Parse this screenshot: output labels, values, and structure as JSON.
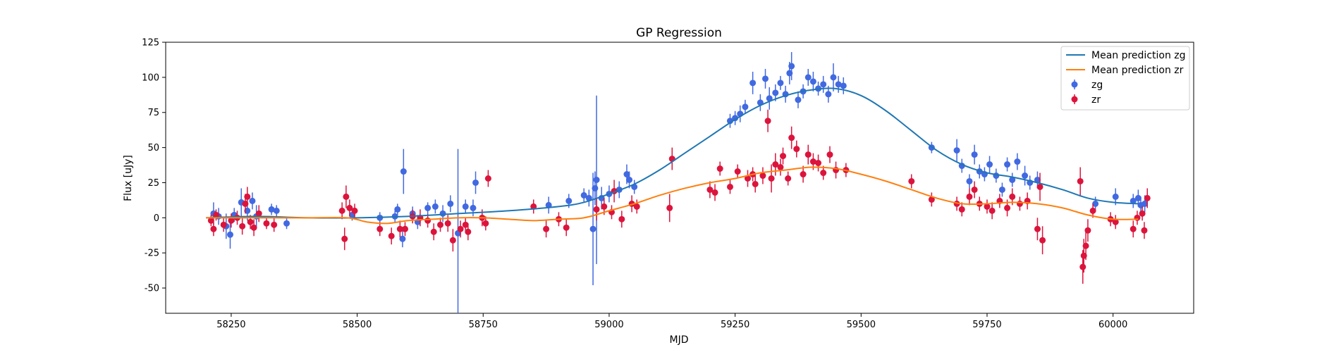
{
  "chart_data": {
    "type": "scatter",
    "title": "GP Regression",
    "xlabel": "MJD",
    "ylabel": "Flux [uJy]",
    "xlim": [
      58120,
      60160
    ],
    "ylim": [
      -68,
      125
    ],
    "xticks": [
      58250,
      58500,
      58750,
      59000,
      59250,
      59500,
      59750,
      60000
    ],
    "yticks": [
      -50,
      -25,
      0,
      25,
      50,
      75,
      100,
      125
    ],
    "grid": false,
    "legend_position": "top-right",
    "legend": [
      "Mean prediction zg",
      "Mean prediction zr",
      "zg",
      "zr"
    ],
    "colors": {
      "zg_line": "#1f77b4",
      "zr_line": "#ff7f0e",
      "zg_points": "#4169e1",
      "zr_points": "#dc143c"
    },
    "lines": [
      {
        "name": "Mean prediction zg",
        "color": "#1f77b4",
        "points": [
          [
            58200,
            0
          ],
          [
            58300,
            1
          ],
          [
            58400,
            0
          ],
          [
            58500,
            0
          ],
          [
            58600,
            1
          ],
          [
            58700,
            3
          ],
          [
            58800,
            5
          ],
          [
            58900,
            8
          ],
          [
            58950,
            11
          ],
          [
            59000,
            17
          ],
          [
            59050,
            24
          ],
          [
            59100,
            34
          ],
          [
            59150,
            46
          ],
          [
            59200,
            58
          ],
          [
            59250,
            70
          ],
          [
            59300,
            80
          ],
          [
            59350,
            87
          ],
          [
            59400,
            91
          ],
          [
            59450,
            92
          ],
          [
            59500,
            87
          ],
          [
            59550,
            76
          ],
          [
            59600,
            62
          ],
          [
            59650,
            48
          ],
          [
            59700,
            38
          ],
          [
            59750,
            32
          ],
          [
            59800,
            29
          ],
          [
            59850,
            25
          ],
          [
            59900,
            20
          ],
          [
            59950,
            14
          ],
          [
            60000,
            11
          ],
          [
            60050,
            10
          ]
        ]
      },
      {
        "name": "Mean prediction zr",
        "color": "#ff7f0e",
        "points": [
          [
            58200,
            0
          ],
          [
            58300,
            0
          ],
          [
            58400,
            0
          ],
          [
            58480,
            0
          ],
          [
            58520,
            -3
          ],
          [
            58560,
            -4
          ],
          [
            58600,
            -2
          ],
          [
            58650,
            -1
          ],
          [
            58700,
            0
          ],
          [
            58750,
            0
          ],
          [
            58800,
            -1
          ],
          [
            58850,
            -2
          ],
          [
            58900,
            -1
          ],
          [
            58950,
            0
          ],
          [
            59000,
            5
          ],
          [
            59050,
            10
          ],
          [
            59100,
            16
          ],
          [
            59150,
            21
          ],
          [
            59200,
            25
          ],
          [
            59250,
            28
          ],
          [
            59300,
            32
          ],
          [
            59350,
            34
          ],
          [
            59400,
            36
          ],
          [
            59450,
            35
          ],
          [
            59500,
            31
          ],
          [
            59550,
            26
          ],
          [
            59600,
            20
          ],
          [
            59650,
            14
          ],
          [
            59700,
            10
          ],
          [
            59750,
            10
          ],
          [
            59800,
            11
          ],
          [
            59850,
            10
          ],
          [
            59900,
            7
          ],
          [
            59950,
            2
          ],
          [
            60000,
            -1
          ],
          [
            60050,
            -1
          ]
        ]
      }
    ],
    "series": [
      {
        "name": "zg",
        "color": "#4169e1",
        "points": [
          [
            58215,
            3,
            8
          ],
          [
            58225,
            1,
            6
          ],
          [
            58240,
            -6,
            9
          ],
          [
            58248,
            -12,
            10
          ],
          [
            58256,
            2,
            5
          ],
          [
            58270,
            11,
            10
          ],
          [
            58282,
            5,
            7
          ],
          [
            58292,
            12,
            6
          ],
          [
            58300,
            1,
            8
          ],
          [
            58330,
            6,
            4
          ],
          [
            58340,
            5,
            4
          ],
          [
            58360,
            -4,
            4
          ],
          [
            58490,
            2,
            4
          ],
          [
            58545,
            0,
            4
          ],
          [
            58575,
            1,
            4
          ],
          [
            58580,
            6,
            4
          ],
          [
            58590,
            -15,
            6
          ],
          [
            58592,
            33,
            16
          ],
          [
            58610,
            3,
            5
          ],
          [
            58620,
            -3,
            5
          ],
          [
            58640,
            7,
            4
          ],
          [
            58655,
            8,
            5
          ],
          [
            58670,
            3,
            6
          ],
          [
            58685,
            10,
            6
          ],
          [
            58700,
            -11,
            60
          ],
          [
            58715,
            8,
            5
          ],
          [
            58730,
            7,
            6
          ],
          [
            58735,
            25,
            8
          ],
          [
            58880,
            9,
            6
          ],
          [
            58920,
            12,
            5
          ],
          [
            58950,
            16,
            5
          ],
          [
            58960,
            14,
            6
          ],
          [
            58968,
            -8,
            40
          ],
          [
            58972,
            21,
            12
          ],
          [
            58975,
            27,
            60
          ],
          [
            58985,
            14,
            8
          ],
          [
            59000,
            17,
            6
          ],
          [
            59020,
            20,
            6
          ],
          [
            59035,
            31,
            7
          ],
          [
            59040,
            27,
            6
          ],
          [
            59050,
            22,
            5
          ],
          [
            59240,
            69,
            5
          ],
          [
            59250,
            71,
            5
          ],
          [
            59260,
            74,
            6
          ],
          [
            59270,
            79,
            5
          ],
          [
            59285,
            96,
            8
          ],
          [
            59300,
            82,
            6
          ],
          [
            59310,
            99,
            7
          ],
          [
            59318,
            85,
            8
          ],
          [
            59330,
            89,
            6
          ],
          [
            59340,
            96,
            5
          ],
          [
            59350,
            88,
            6
          ],
          [
            59358,
            103,
            8
          ],
          [
            59362,
            108,
            10
          ],
          [
            59375,
            84,
            6
          ],
          [
            59385,
            90,
            5
          ],
          [
            59395,
            100,
            6
          ],
          [
            59405,
            97,
            7
          ],
          [
            59415,
            92,
            5
          ],
          [
            59425,
            95,
            6
          ],
          [
            59435,
            88,
            6
          ],
          [
            59445,
            100,
            10
          ],
          [
            59455,
            95,
            6
          ],
          [
            59465,
            94,
            6
          ],
          [
            59640,
            50,
            4
          ],
          [
            59690,
            48,
            8
          ],
          [
            59700,
            37,
            5
          ],
          [
            59715,
            26,
            5
          ],
          [
            59725,
            45,
            7
          ],
          [
            59735,
            33,
            5
          ],
          [
            59745,
            31,
            5
          ],
          [
            59755,
            38,
            6
          ],
          [
            59768,
            30,
            5
          ],
          [
            59780,
            20,
            5
          ],
          [
            59790,
            38,
            5
          ],
          [
            59800,
            27,
            5
          ],
          [
            59810,
            40,
            6
          ],
          [
            59825,
            30,
            7
          ],
          [
            59835,
            25,
            5
          ],
          [
            59850,
            27,
            6
          ],
          [
            59965,
            10,
            5
          ],
          [
            60005,
            15,
            6
          ],
          [
            60040,
            12,
            5
          ],
          [
            60050,
            14,
            6
          ],
          [
            60055,
            9,
            6
          ],
          [
            60063,
            10,
            6
          ]
        ]
      },
      {
        "name": "zr",
        "color": "#dc143c",
        "points": [
          [
            58210,
            -2,
            4
          ],
          [
            58215,
            -8,
            5
          ],
          [
            58220,
            2,
            4
          ],
          [
            58235,
            -5,
            5
          ],
          [
            58250,
            -2,
            5
          ],
          [
            58262,
            0,
            5
          ],
          [
            58272,
            -6,
            6
          ],
          [
            58278,
            10,
            7
          ],
          [
            58282,
            15,
            7
          ],
          [
            58288,
            -3,
            5
          ],
          [
            58295,
            -7,
            6
          ],
          [
            58305,
            3,
            6
          ],
          [
            58320,
            -4,
            4
          ],
          [
            58335,
            -5,
            5
          ],
          [
            58470,
            5,
            6
          ],
          [
            58475,
            -15,
            8
          ],
          [
            58478,
            15,
            8
          ],
          [
            58485,
            7,
            6
          ],
          [
            58495,
            5,
            5
          ],
          [
            58545,
            -8,
            5
          ],
          [
            58568,
            -13,
            6
          ],
          [
            58585,
            -8,
            6
          ],
          [
            58595,
            -8,
            5
          ],
          [
            58610,
            1,
            5
          ],
          [
            58625,
            0,
            6
          ],
          [
            58640,
            -2,
            5
          ],
          [
            58652,
            -10,
            6
          ],
          [
            58665,
            -5,
            5
          ],
          [
            58680,
            -4,
            6
          ],
          [
            58690,
            -16,
            8
          ],
          [
            58705,
            -8,
            6
          ],
          [
            58715,
            -5,
            5
          ],
          [
            58720,
            -10,
            6
          ],
          [
            58748,
            0,
            6
          ],
          [
            58755,
            -4,
            5
          ],
          [
            58760,
            28,
            6
          ],
          [
            58850,
            8,
            5
          ],
          [
            58875,
            -8,
            6
          ],
          [
            58900,
            -1,
            5
          ],
          [
            58915,
            -7,
            6
          ],
          [
            58975,
            6,
            8
          ],
          [
            58990,
            8,
            6
          ],
          [
            59005,
            4,
            5
          ],
          [
            59010,
            19,
            8
          ],
          [
            59025,
            -1,
            6
          ],
          [
            59045,
            10,
            6
          ],
          [
            59055,
            8,
            5
          ],
          [
            59120,
            7,
            10
          ],
          [
            59125,
            42,
            8
          ],
          [
            59200,
            20,
            6
          ],
          [
            59210,
            18,
            6
          ],
          [
            59220,
            35,
            5
          ],
          [
            59240,
            22,
            5
          ],
          [
            59255,
            33,
            5
          ],
          [
            59275,
            28,
            6
          ],
          [
            59285,
            31,
            5
          ],
          [
            59290,
            24,
            6
          ],
          [
            59305,
            30,
            6
          ],
          [
            59315,
            69,
            8
          ],
          [
            59322,
            28,
            10
          ],
          [
            59330,
            38,
            8
          ],
          [
            59340,
            36,
            6
          ],
          [
            59345,
            44,
            6
          ],
          [
            59355,
            28,
            5
          ],
          [
            59362,
            57,
            8
          ],
          [
            59372,
            49,
            6
          ],
          [
            59385,
            31,
            6
          ],
          [
            59395,
            45,
            7
          ],
          [
            59405,
            40,
            6
          ],
          [
            59415,
            39,
            6
          ],
          [
            59425,
            32,
            5
          ],
          [
            59438,
            45,
            6
          ],
          [
            59450,
            34,
            6
          ],
          [
            59470,
            34,
            5
          ],
          [
            59600,
            26,
            5
          ],
          [
            59640,
            13,
            5
          ],
          [
            59690,
            10,
            5
          ],
          [
            59700,
            6,
            5
          ],
          [
            59715,
            15,
            6
          ],
          [
            59725,
            20,
            6
          ],
          [
            59735,
            10,
            5
          ],
          [
            59750,
            8,
            5
          ],
          [
            59760,
            5,
            6
          ],
          [
            59775,
            12,
            5
          ],
          [
            59790,
            7,
            6
          ],
          [
            59800,
            15,
            6
          ],
          [
            59815,
            10,
            5
          ],
          [
            59830,
            12,
            6
          ],
          [
            59850,
            -8,
            8
          ],
          [
            59855,
            22,
            10
          ],
          [
            59860,
            -16,
            10
          ],
          [
            59935,
            26,
            10
          ],
          [
            59940,
            -35,
            12
          ],
          [
            59942,
            -27,
            12
          ],
          [
            59946,
            -20,
            10
          ],
          [
            59950,
            -9,
            8
          ],
          [
            59960,
            5,
            5
          ],
          [
            59995,
            -1,
            5
          ],
          [
            60005,
            -3,
            5
          ],
          [
            60040,
            -8,
            6
          ],
          [
            60048,
            0,
            5
          ],
          [
            60058,
            3,
            5
          ],
          [
            60062,
            -9,
            6
          ],
          [
            60068,
            14,
            7
          ]
        ]
      }
    ]
  }
}
